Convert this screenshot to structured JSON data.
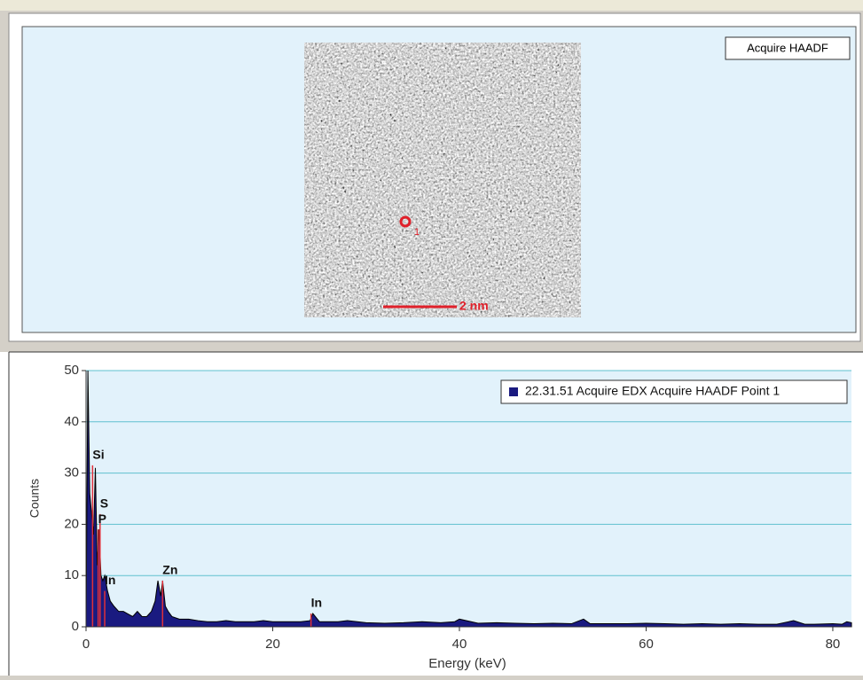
{
  "image_panel": {
    "button": "Acquire HAADF",
    "point_label": "1",
    "scale_label": "2 nm"
  },
  "chart_data": {
    "type": "spectrum",
    "xlabel": "Energy (keV)",
    "ylabel": "Counts",
    "xlim": [
      0,
      82
    ],
    "xticks": [
      0,
      20,
      40,
      60,
      80
    ],
    "ylim": [
      0,
      50
    ],
    "yticks": [
      0,
      10,
      20,
      30,
      40,
      50
    ],
    "grid": true,
    "legend": "upper right",
    "series": [
      {
        "name": "22.31.51 Acquire EDX Acquire HAADF Point 1",
        "color": "#1a1a80",
        "x": [
          0,
          0.2,
          0.4,
          0.6,
          0.8,
          1.0,
          1.2,
          1.4,
          1.6,
          1.8,
          2.0,
          2.3,
          2.6,
          3,
          3.5,
          4,
          4.5,
          5,
          5.5,
          6,
          6.5,
          7,
          7.4,
          7.7,
          8,
          8.2,
          8.5,
          8.8,
          9.2,
          10,
          11,
          12,
          13,
          14,
          15,
          16,
          17,
          18,
          19,
          20,
          21,
          22,
          23,
          24,
          24.3,
          25,
          26,
          27,
          28,
          30,
          32,
          34,
          36,
          38,
          39.5,
          40,
          42,
          44,
          46,
          48,
          50,
          52,
          53.3,
          54,
          56,
          58,
          60,
          62,
          64,
          66,
          68,
          70,
          72,
          74,
          75.8,
          77,
          78,
          80,
          81,
          81.5,
          82
        ],
        "values": [
          0,
          50,
          26,
          22,
          18,
          31,
          12,
          19,
          10,
          9,
          10,
          7,
          5,
          4,
          3,
          3,
          2.5,
          2,
          3,
          2,
          2,
          3,
          5,
          9,
          6,
          9,
          4,
          3,
          2,
          1.5,
          1.5,
          1.2,
          1,
          1,
          1.2,
          1,
          1,
          1,
          1.2,
          1,
          1,
          1,
          1,
          1.2,
          2.6,
          1,
          1,
          1,
          1.2,
          0.8,
          0.7,
          0.8,
          1,
          0.8,
          1,
          1.5,
          0.7,
          0.8,
          0.7,
          0.6,
          0.7,
          0.6,
          1.5,
          0.6,
          0.6,
          0.6,
          0.7,
          0.6,
          0.5,
          0.6,
          0.5,
          0.6,
          0.5,
          0.5,
          1.2,
          0.5,
          0.5,
          0.6,
          0.5,
          1,
          0.8
        ]
      }
    ],
    "peaks": {
      "color": "#e0303a",
      "labels": [
        "Si",
        "S",
        "P",
        "In",
        "Zn",
        "In"
      ],
      "energies": [
        0.7,
        1.5,
        1.3,
        2.0,
        8.2,
        24.1
      ],
      "counts": [
        31.5,
        22,
        19,
        7,
        9,
        2.6
      ]
    }
  }
}
